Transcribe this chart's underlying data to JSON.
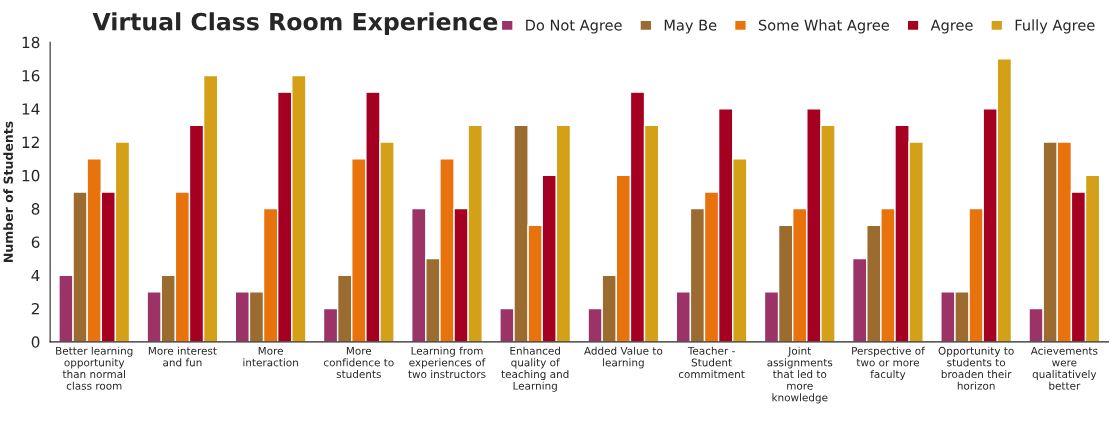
{
  "chart_data": {
    "type": "bar",
    "title": "Virtual Class Room Experience",
    "ylabel": "Number of Students",
    "categories": [
      "Better learning\nopportunity\nthan normal\nclass room",
      "More interest\nand fun",
      "More\ninteraction",
      "More\nconfidence to\nstudents",
      "Learning from\nexperiences of\ntwo instructors",
      "Enhanced\nquality of\nteaching and\nLearning",
      "Added Value to\nlearning",
      "Teacher -\nStudent\ncommitment",
      "Joint\nassignments\nthat led to\nmore\nknowledge",
      "Perspective of\ntwo or more\nfaculty",
      "Opportunity to\nstudents to\nbroaden their\nhorizon",
      "Acievements\nwere\nqualitatively\nbetter"
    ],
    "series": [
      {
        "name": "Do Not Agree",
        "color": "#9b3366",
        "values": [
          4,
          3,
          3,
          2,
          8,
          2,
          2,
          3,
          3,
          5,
          3,
          2
        ]
      },
      {
        "name": "May Be",
        "color": "#9c6b30",
        "values": [
          9,
          4,
          3,
          4,
          5,
          13,
          4,
          8,
          7,
          7,
          3,
          12
        ]
      },
      {
        "name": "Some What Agree",
        "color": "#e8720c",
        "values": [
          11,
          9,
          8,
          11,
          11,
          7,
          10,
          9,
          8,
          8,
          8,
          12
        ]
      },
      {
        "name": "Agree",
        "color": "#a50021",
        "values": [
          9,
          13,
          15,
          15,
          8,
          10,
          15,
          14,
          14,
          13,
          14,
          9
        ]
      },
      {
        "name": "Fully Agree",
        "color": "#d4a017",
        "values": [
          12,
          16,
          16,
          12,
          13,
          13,
          13,
          11,
          13,
          12,
          17,
          10
        ]
      }
    ],
    "ylim": [
      0,
      18
    ],
    "yticks": [
      0,
      2,
      4,
      6,
      8,
      10,
      12,
      14,
      16,
      18
    ],
    "grid": false,
    "legend": "top right"
  }
}
